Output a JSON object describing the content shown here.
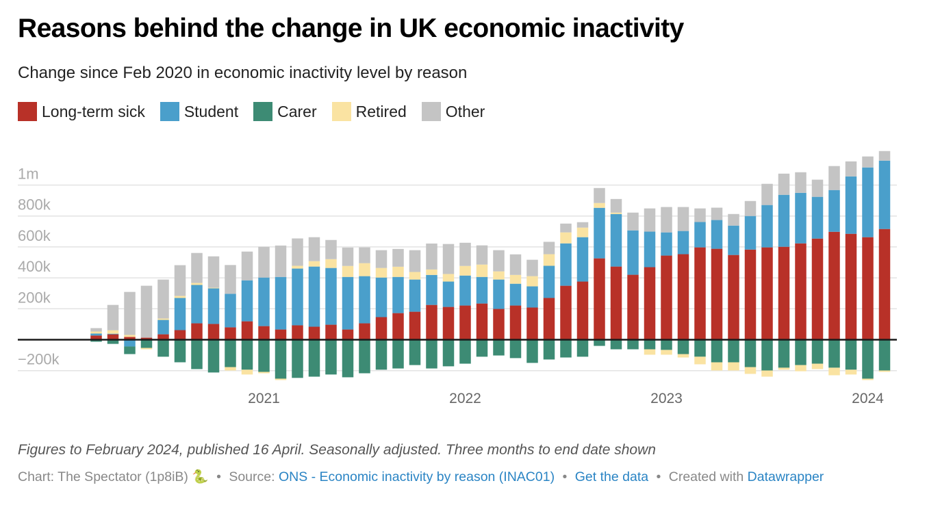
{
  "header": {
    "title": "Reasons behind the change in UK economic inactivity",
    "subtitle": "Change since Feb 2020 in economic inactivity level by reason"
  },
  "legend": [
    {
      "key": "lts",
      "label": "Long-term sick",
      "color": "#b83128"
    },
    {
      "key": "stu",
      "label": "Student",
      "color": "#4a9fcb"
    },
    {
      "key": "car",
      "label": "Carer",
      "color": "#3d8b74"
    },
    {
      "key": "ret",
      "label": "Retired",
      "color": "#fae3a2"
    },
    {
      "key": "oth",
      "label": "Other",
      "color": "#c4c4c4"
    }
  ],
  "footer": {
    "note": "Figures to February 2024, published 16 April. Seasonally adjusted. Three months to end date shown",
    "chart_credit": "Chart: The Spectator (1p8iB) 🐍",
    "source_label": "Source:",
    "source_link": "ONS - Economic inactivity by reason (INAC01)",
    "get_data": "Get the data",
    "created_with": "Created with",
    "datawrapper": "Datawrapper",
    "bullet": "•"
  },
  "chart_data": {
    "type": "bar",
    "stacked": true,
    "title": "Reasons behind the change in UK economic inactivity",
    "subtitle": "Change since Feb 2020 in economic inactivity level by reason",
    "xlabel": "",
    "ylabel": "",
    "units": "thousands",
    "ylim": [
      -250,
      1200
    ],
    "yticks": [
      {
        "value": -200,
        "label": "−200k"
      },
      {
        "value": 0,
        "label": ""
      },
      {
        "value": 200,
        "label": "200k"
      },
      {
        "value": 400,
        "label": "400k"
      },
      {
        "value": 600,
        "label": "600k"
      },
      {
        "value": 800,
        "label": "800k"
      },
      {
        "value": 1000,
        "label": "1m"
      }
    ],
    "xticks": [
      {
        "index": 10,
        "label": "2021"
      },
      {
        "index": 22,
        "label": "2022"
      },
      {
        "index": 34,
        "label": "2023"
      },
      {
        "index": 46,
        "label": "2024"
      }
    ],
    "grid": true,
    "legend_position": "top-left",
    "categories": [
      "Mar 2020",
      "Apr 2020",
      "May 2020",
      "Jun 2020",
      "Jul 2020",
      "Aug 2020",
      "Sep 2020",
      "Oct 2020",
      "Nov 2020",
      "Dec 2020",
      "Jan 2021",
      "Feb 2021",
      "Mar 2021",
      "Apr 2021",
      "May 2021",
      "Jun 2021",
      "Jul 2021",
      "Aug 2021",
      "Sep 2021",
      "Oct 2021",
      "Nov 2021",
      "Dec 2021",
      "Jan 2022",
      "Feb 2022",
      "Mar 2022",
      "Apr 2022",
      "May 2022",
      "Jun 2022",
      "Jul 2022",
      "Aug 2022",
      "Sep 2022",
      "Oct 2022",
      "Nov 2022",
      "Dec 2022",
      "Jan 2023",
      "Feb 2023",
      "Mar 2023",
      "Apr 2023",
      "May 2023",
      "Jun 2023",
      "Jul 2023",
      "Aug 2023",
      "Sep 2023",
      "Oct 2023",
      "Nov 2023",
      "Dec 2023",
      "Jan 2024",
      "Feb 2024"
    ],
    "series": [
      {
        "name": "Long-term sick",
        "key": "lts",
        "values": [
          27,
          35,
          18,
          13,
          35,
          62,
          106,
          102,
          80,
          119,
          88,
          66,
          93,
          84,
          97,
          66,
          106,
          146,
          172,
          181,
          225,
          212,
          221,
          234,
          199,
          221,
          208,
          270,
          349,
          376,
          526,
          473,
          420,
          469,
          544,
          553,
          597,
          588,
          548,
          583,
          597,
          601,
          623,
          654,
          698,
          685,
          663,
          716
        ]
      },
      {
        "name": "Student",
        "key": "stu",
        "values": [
          13,
          4,
          -44,
          0,
          93,
          208,
          248,
          230,
          217,
          265,
          314,
          340,
          367,
          389,
          367,
          340,
          305,
          256,
          234,
          208,
          194,
          164,
          194,
          172,
          190,
          141,
          137,
          208,
          274,
          287,
          327,
          340,
          287,
          230,
          150,
          150,
          164,
          186,
          190,
          217,
          274,
          336,
          327,
          270,
          270,
          371,
          451,
          442
        ]
      },
      {
        "name": "Carer",
        "key": "car",
        "values": [
          -13,
          -27,
          -49,
          -53,
          -110,
          -146,
          -190,
          -212,
          -177,
          -194,
          -208,
          -252,
          -247,
          -239,
          -225,
          -243,
          -217,
          -194,
          -186,
          -164,
          -186,
          -172,
          -155,
          -110,
          -102,
          -119,
          -150,
          -128,
          -115,
          -110,
          -40,
          -62,
          -62,
          -62,
          -66,
          -93,
          -110,
          -146,
          -146,
          -177,
          -199,
          -181,
          -164,
          -155,
          -181,
          -194,
          -252,
          -199
        ]
      },
      {
        "name": "Retired",
        "key": "ret",
        "values": [
          13,
          22,
          13,
          -9,
          9,
          13,
          13,
          4,
          -22,
          -31,
          -9,
          -9,
          18,
          35,
          57,
          71,
          84,
          62,
          66,
          49,
          35,
          49,
          62,
          80,
          53,
          57,
          66,
          75,
          71,
          62,
          31,
          9,
          0,
          -35,
          -31,
          -22,
          -49,
          -53,
          -53,
          -44,
          -40,
          -13,
          -40,
          -35,
          -49,
          -31,
          -9,
          -9
        ]
      },
      {
        "name": "Other",
        "key": "oth",
        "values": [
          22,
          164,
          278,
          336,
          252,
          199,
          194,
          203,
          186,
          186,
          199,
          203,
          177,
          155,
          124,
          119,
          102,
          115,
          115,
          141,
          168,
          194,
          150,
          124,
          137,
          133,
          106,
          80,
          57,
          35,
          97,
          88,
          115,
          150,
          164,
          155,
          88,
          80,
          75,
          97,
          137,
          137,
          133,
          111,
          155,
          97,
          71,
          62
        ]
      }
    ]
  }
}
